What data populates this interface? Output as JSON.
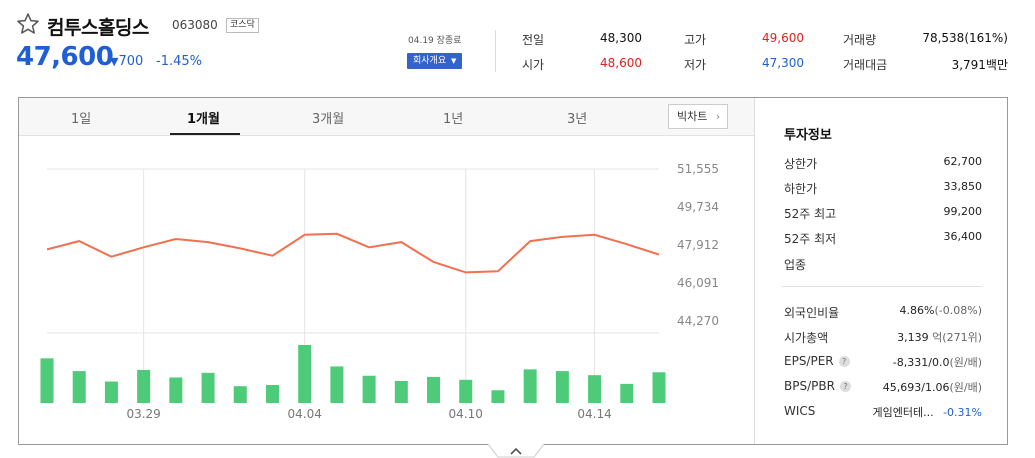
{
  "header": {
    "name": "컴투스홀딩스",
    "code": "063080",
    "market": "코스닥",
    "price": "47,600",
    "change": "700",
    "change_pct": "-1.45%",
    "closed_note": "04.19 장종료",
    "company_info_btn": "회사개요",
    "change_arrow_icon": "triangle-down-icon",
    "favorite_icon": "star-outline-icon"
  },
  "quote": {
    "prev_close_label": "전일",
    "prev_close": "48,300",
    "open_label": "시가",
    "open": "48,600",
    "high_label": "고가",
    "high": "49,600",
    "low_label": "저가",
    "low": "47,300",
    "volume_label": "거래량",
    "volume": "78,538(161%)",
    "amount_label": "거래대금",
    "amount": "3,791백만"
  },
  "tabs": [
    "1일",
    "1개월",
    "3개월",
    "1년",
    "3년"
  ],
  "active_tab": "1개월",
  "bigchart_label": "빅차트",
  "investment": {
    "title": "투자정보",
    "upper_limit_label": "상한가",
    "upper_limit": "62,700",
    "lower_limit_label": "하한가",
    "lower_limit": "33,850",
    "high52_label": "52주 최고",
    "high52": "99,200",
    "low52_label": "52주 최저",
    "low52": "36,400",
    "sector_label": "업종",
    "foreign_label": "외국인비율",
    "foreign": "4.86%",
    "foreign_chg": "(-0.08%)",
    "mktcap_label": "시가총액",
    "mktcap": "3,139",
    "mktcap_unit": "억(271위)",
    "eps_label": "EPS/PER",
    "eps": "-8,331/0.0",
    "eps_unit": "(원/배)",
    "bps_label": "BPS/PBR",
    "bps": "45,693/1.06",
    "bps_unit": "(원/배)",
    "wics_label": "WICS",
    "wics": "게임엔터테...",
    "wics_chg": "-0.31%",
    "help_glyph": "?"
  },
  "colors": {
    "up": "#e02020",
    "down": "#1f5fd6",
    "line": "#f07050",
    "volume": "#4ecb79"
  },
  "chart_data": {
    "type": "line",
    "y_ticks": [
      "51,555",
      "49,734",
      "47,912",
      "46,091",
      "44,270"
    ],
    "x_tick_labels": [
      "03.29",
      "04.04",
      "04.10",
      "04.14"
    ],
    "x_tick_indices": [
      3,
      8,
      13,
      17
    ],
    "ylim": [
      44270,
      51555
    ],
    "price_series": [
      47700,
      48100,
      47350,
      47800,
      48200,
      48050,
      47750,
      47400,
      48400,
      48450,
      47800,
      48050,
      47100,
      46600,
      46650,
      48100,
      48300,
      48400,
      47950,
      47450
    ],
    "volume_series": [
      0.77,
      0.55,
      0.37,
      0.57,
      0.44,
      0.52,
      0.29,
      0.31,
      1.0,
      0.63,
      0.47,
      0.38,
      0.45,
      0.4,
      0.22,
      0.58,
      0.55,
      0.48,
      0.33,
      0.53
    ],
    "grid": true
  }
}
